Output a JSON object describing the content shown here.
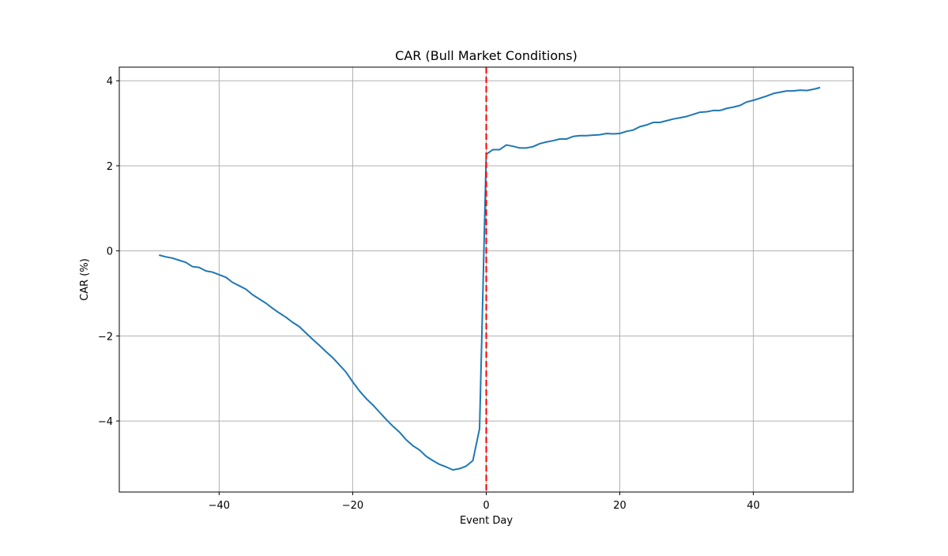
{
  "chart_data": {
    "type": "line",
    "title": "CAR (Bull Market Conditions)",
    "xlabel": "Event Day",
    "ylabel": "CAR (%)",
    "xlim": [
      -54.95,
      54.95
    ],
    "ylim": [
      -5.67,
      4.32
    ],
    "xticks": [
      -40,
      -20,
      0,
      20,
      40
    ],
    "yticks": [
      -4,
      -2,
      0,
      2,
      4
    ],
    "xtick_labels": [
      "−40",
      "−20",
      "0",
      "20",
      "40"
    ],
    "ytick_labels": [
      "−4",
      "−2",
      "0",
      "2",
      "4"
    ],
    "grid": true,
    "event_line": {
      "x": 0,
      "color": "#ff0000",
      "style": "dashed"
    },
    "series": [
      {
        "color": "#1f77b4",
        "x": [
          -49,
          -48,
          -47,
          -46,
          -45,
          -44,
          -43,
          -42,
          -41,
          -40,
          -39,
          -38,
          -37,
          -36,
          -35,
          -34,
          -33,
          -32,
          -31,
          -30,
          -29,
          -28,
          -27,
          -26,
          -25,
          -24,
          -23,
          -22,
          -21,
          -20,
          -19,
          -18,
          -17,
          -16,
          -15,
          -14,
          -13,
          -12,
          -11,
          -10,
          -9,
          -8,
          -7,
          -6,
          -5,
          -4,
          -3,
          -2,
          -1,
          0,
          1,
          2,
          3,
          4,
          5,
          6,
          7,
          8,
          9,
          10,
          11,
          12,
          13,
          14,
          15,
          16,
          17,
          18,
          19,
          20,
          21,
          22,
          23,
          24,
          25,
          26,
          27,
          28,
          29,
          30,
          31,
          32,
          33,
          34,
          35,
          36,
          37,
          38,
          39,
          40,
          41,
          42,
          43,
          44,
          45,
          46,
          47,
          48,
          49,
          50
        ],
        "y": [
          -0.1,
          -0.14,
          -0.17,
          -0.22,
          -0.27,
          -0.37,
          -0.39,
          -0.47,
          -0.5,
          -0.56,
          -0.62,
          -0.74,
          -0.82,
          -0.9,
          -1.03,
          -1.13,
          -1.23,
          -1.35,
          -1.46,
          -1.56,
          -1.68,
          -1.78,
          -1.93,
          -2.08,
          -2.22,
          -2.37,
          -2.51,
          -2.68,
          -2.85,
          -3.08,
          -3.29,
          -3.47,
          -3.62,
          -3.79,
          -3.96,
          -4.12,
          -4.26,
          -4.44,
          -4.58,
          -4.68,
          -4.83,
          -4.93,
          -5.02,
          -5.08,
          -5.15,
          -5.12,
          -5.06,
          -4.93,
          -4.18,
          2.27,
          2.38,
          2.38,
          2.49,
          2.46,
          2.42,
          2.42,
          2.45,
          2.52,
          2.56,
          2.59,
          2.63,
          2.63,
          2.69,
          2.71,
          2.71,
          2.72,
          2.73,
          2.76,
          2.75,
          2.76,
          2.81,
          2.84,
          2.92,
          2.96,
          3.02,
          3.02,
          3.06,
          3.1,
          3.13,
          3.16,
          3.21,
          3.26,
          3.27,
          3.3,
          3.3,
          3.35,
          3.38,
          3.42,
          3.5,
          3.54,
          3.59,
          3.64,
          3.7,
          3.73,
          3.76,
          3.76,
          3.78,
          3.77,
          3.8,
          3.84
        ]
      }
    ]
  }
}
